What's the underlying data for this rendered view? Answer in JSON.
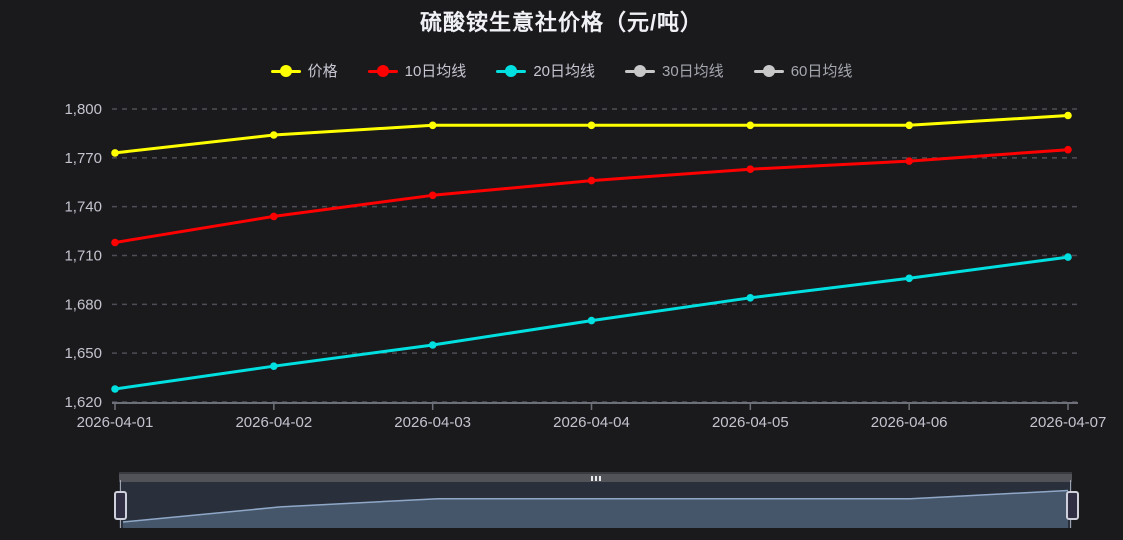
{
  "title": {
    "text": "硫酸铵生意社价格（元/吨）"
  },
  "colors": {
    "background": "#1a1a1d",
    "grid_line": "#4e4f56",
    "axis_line": "#6e7079",
    "axis_label": "#c3c4ce",
    "title_text": "#f0f1f5",
    "legend_active_text": "#c6c7d1",
    "legend_inactive_text": "#a6a8b0",
    "legend_inactive_marker": "#c8c8c8",
    "price_line": "#ffff00",
    "ma10_line": "#ff0000",
    "ma20_line": "#00e0e0",
    "dz_fill": "#46566a",
    "dz_shadow_line": "#8fa8c8"
  },
  "legend": {
    "items": [
      {
        "key": "price",
        "label": "价格",
        "color": "#ffff00",
        "active": true
      },
      {
        "key": "ma10",
        "label": "10日均线",
        "color": "#ff0000",
        "active": true
      },
      {
        "key": "ma20",
        "label": "20日均线",
        "color": "#00e0e0",
        "active": true
      },
      {
        "key": "ma30",
        "label": "30日均线",
        "color": "#c8c8c8",
        "active": false
      },
      {
        "key": "ma60",
        "label": "60日均线",
        "color": "#c8c8c8",
        "active": false
      }
    ]
  },
  "chart_data": {
    "type": "line",
    "title": "硫酸铵生意社价格（元/吨）",
    "categories": [
      "2026-04-01",
      "2026-04-02",
      "2026-04-03",
      "2026-04-04",
      "2026-04-05",
      "2026-04-06",
      "2026-04-07"
    ],
    "series": [
      {
        "key": "price",
        "name": "价格",
        "color": "#ffff00",
        "values": [
          1773,
          1784,
          1790,
          1790,
          1790,
          1790,
          1796
        ]
      },
      {
        "key": "ma10",
        "name": "10日均线",
        "color": "#ff0000",
        "values": [
          1718,
          1734,
          1747,
          1756,
          1763,
          1768,
          1775
        ]
      },
      {
        "key": "ma20",
        "name": "20日均线",
        "color": "#00e0e0",
        "values": [
          1628,
          1642,
          1655,
          1670,
          1684,
          1696,
          1709
        ]
      }
    ],
    "hidden_series": [
      "30日均线",
      "60日均线"
    ],
    "xlabel": "",
    "ylabel": "",
    "ylim": [
      1620,
      1800
    ],
    "ytick_step": 30,
    "yticks": [
      {
        "value": 1620,
        "label": "1,620"
      },
      {
        "value": 1650,
        "label": "1,650"
      },
      {
        "value": 1680,
        "label": "1,680"
      },
      {
        "value": 1710,
        "label": "1,710"
      },
      {
        "value": 1740,
        "label": "1,740"
      },
      {
        "value": 1770,
        "label": "1,770"
      },
      {
        "value": 1800,
        "label": "1,800"
      }
    ],
    "grid": "horizontal dashed gridlines, no vertical gridlines",
    "legend_position": "top center",
    "datazoom": {
      "enabled": true,
      "shadow_of_series": "价格",
      "range": "full"
    }
  }
}
